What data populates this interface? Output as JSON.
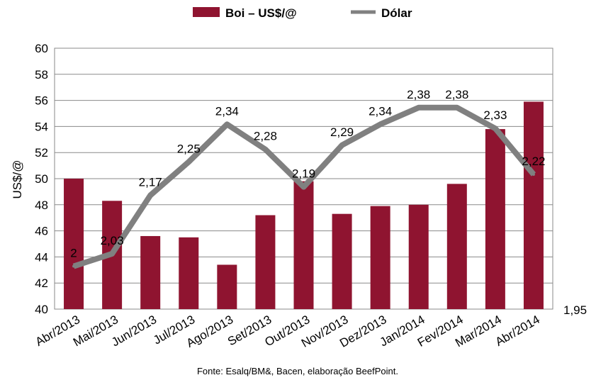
{
  "chart_data": {
    "type": "bar",
    "categories": [
      "Abr/2013",
      "Mai/2013",
      "Jun/2013",
      "Jul/2013",
      "Ago/2013",
      "Set/2013",
      "Out/2013",
      "Nov/2013",
      "Dez/2013",
      "Jan/2014",
      "Fev/2014",
      "Mar/2014",
      "Abr/2014"
    ],
    "series": [
      {
        "name": "Boi – US$/@",
        "type": "bar",
        "color": "#8f1430",
        "axis": "left",
        "values": [
          50.0,
          48.3,
          45.6,
          45.5,
          43.4,
          47.2,
          49.8,
          47.3,
          47.9,
          48.0,
          49.6,
          53.8,
          55.9
        ]
      },
      {
        "name": "Dólar",
        "type": "line",
        "color": "#808080",
        "axis": "right",
        "values": [
          2.0,
          2.03,
          2.17,
          2.25,
          2.34,
          2.28,
          2.19,
          2.29,
          2.34,
          2.38,
          2.38,
          2.33,
          2.22
        ],
        "labels": [
          "2",
          "2,03",
          "2,17",
          "2,25",
          "2,34",
          "2,28",
          "2,19",
          "2,29",
          "2,34",
          "2,38",
          "2,38",
          "2,33",
          "2,22"
        ]
      }
    ],
    "ylabel": "US$/@",
    "ylim": [
      40,
      60
    ],
    "yticks": [
      "40",
      "42",
      "44",
      "46",
      "48",
      "50",
      "52",
      "54",
      "56",
      "58",
      "60"
    ],
    "y2_tick_label": "1,95",
    "grid": true,
    "legend": "top-center"
  },
  "source": "Fonte: Esalq/BM&, Bacen, elaboração BeefPoint."
}
